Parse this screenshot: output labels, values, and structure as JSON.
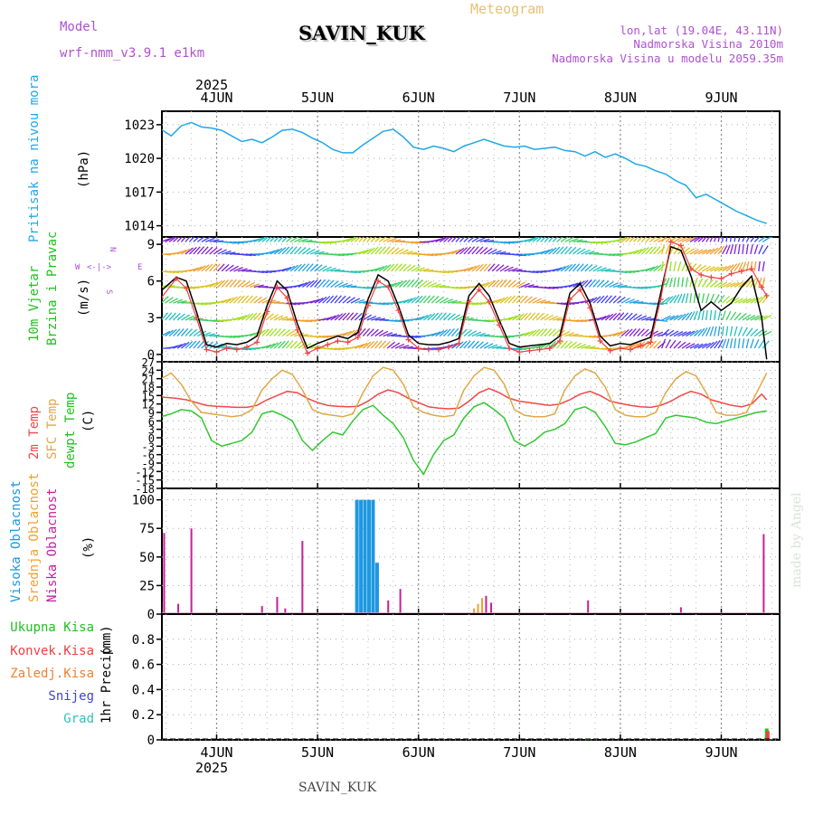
{
  "header": {
    "model_label": "Model",
    "model_name": "wrf-nmm_v3.9.1 e1km",
    "station": "SAVIN_KUK",
    "meteogram": "Meteogram",
    "lonlat": "lon,lat (19.04E, 43.11N)",
    "altitude": "Nadmorska Visina 2010m",
    "model_altitude": "Nadmorska Visina u modelu 2059.35m"
  },
  "footer": {
    "station": "SAVIN_KUK",
    "credit": "made by Angel"
  },
  "colors": {
    "pressure": "#1ea8e8",
    "temp2m": "#f04848",
    "sfc": "#e0a848",
    "dew": "#30c830",
    "cloud_high": "#1e98e0",
    "cloud_mid": "#f0a030",
    "cloud_low": "#c81e9a",
    "precip_total": "#20c020",
    "precip_conv": "#f04040",
    "precip_frz": "#f08030",
    "snow": "#4040e0",
    "hail": "#30c0c0",
    "wind_speed": "#000000",
    "gust": "#f04040"
  },
  "chart_data": [
    {
      "type": "line",
      "panel": "pressure",
      "ylabel": "Pritisak na nivou mora",
      "unit": "(hPa)",
      "ylim": [
        1013,
        1024.2
      ],
      "yticks": [
        1014,
        1017,
        1020,
        1023
      ],
      "x_dates": [
        "4JUN",
        "5JUN",
        "6JUN",
        "7JUN",
        "8JUN",
        "9JUN"
      ],
      "year": "2025",
      "grid": true,
      "series": [
        {
          "color_key": "pressure",
          "x": [
            -0.55,
            -0.45,
            -0.35,
            -0.25,
            -0.15,
            -0.05,
            0.05,
            0.15,
            0.25,
            0.35,
            0.45,
            0.55,
            0.65,
            0.75,
            0.85,
            0.95,
            1.05,
            1.15,
            1.25,
            1.35,
            1.45,
            1.55,
            1.65,
            1.75,
            1.85,
            1.95,
            2.05,
            2.15,
            2.25,
            2.35,
            2.45,
            2.55,
            2.65,
            2.75,
            2.85,
            2.95,
            3.05,
            3.15,
            3.25,
            3.35,
            3.45,
            3.55,
            3.65,
            3.75,
            3.85,
            3.95,
            4.05,
            4.15,
            4.25,
            4.35,
            4.45,
            4.55,
            4.65,
            4.75,
            4.85,
            4.95,
            5.05,
            5.15,
            5.25,
            5.35,
            5.45
          ],
          "values": [
            1022.6,
            1022.0,
            1022.9,
            1023.2,
            1022.8,
            1022.7,
            1022.5,
            1022.0,
            1021.5,
            1021.7,
            1021.4,
            1021.9,
            1022.5,
            1022.6,
            1022.3,
            1021.8,
            1021.4,
            1020.8,
            1020.5,
            1020.5,
            1021.2,
            1021.8,
            1022.4,
            1022.6,
            1021.9,
            1021.0,
            1020.8,
            1021.1,
            1020.9,
            1020.6,
            1021.1,
            1021.4,
            1021.7,
            1021.4,
            1021.1,
            1021.0,
            1021.1,
            1020.8,
            1020.9,
            1021.0,
            1020.7,
            1020.6,
            1020.2,
            1020.6,
            1020.1,
            1020.4,
            1020.0,
            1019.5,
            1019.3,
            1018.9,
            1018.6,
            1018.0,
            1017.6,
            1016.5,
            1016.8,
            1016.3,
            1015.8,
            1015.3,
            1014.9,
            1014.5,
            1014.2
          ]
        }
      ]
    },
    {
      "type": "line",
      "panel": "wind",
      "ylabel": [
        "10m Vjetar",
        "Brzina i Pravac"
      ],
      "unit": "(m/s)",
      "ylim": [
        -0.6,
        9.6
      ],
      "yticks": [
        0,
        3,
        6,
        9
      ],
      "compass": {
        "n": "N",
        "s": "S",
        "w": "W",
        "e": "E"
      },
      "series": [
        {
          "name": "speed",
          "color_key": "wind_speed",
          "x": [
            -0.55,
            -0.4,
            -0.3,
            -0.2,
            -0.1,
            0.0,
            0.1,
            0.2,
            0.3,
            0.4,
            0.5,
            0.6,
            0.7,
            0.8,
            0.9,
            1.0,
            1.1,
            1.2,
            1.3,
            1.4,
            1.5,
            1.6,
            1.7,
            1.8,
            1.9,
            2.0,
            2.1,
            2.2,
            2.3,
            2.4,
            2.5,
            2.6,
            2.7,
            2.8,
            2.9,
            3.0,
            3.1,
            3.2,
            3.3,
            3.4,
            3.5,
            3.6,
            3.7,
            3.8,
            3.9,
            4.0,
            4.1,
            4.2,
            4.3,
            4.4,
            4.5,
            4.6,
            4.7,
            4.8,
            4.9,
            5.0,
            5.1,
            5.2,
            5.3,
            5.4,
            5.45
          ],
          "values": [
            5.2,
            6.3,
            6.0,
            3.5,
            0.8,
            0.6,
            0.9,
            0.8,
            1.0,
            1.5,
            4.0,
            6.0,
            5.2,
            2.5,
            0.5,
            0.9,
            1.2,
            1.5,
            1.3,
            1.8,
            4.5,
            6.5,
            6.0,
            4.0,
            1.6,
            0.9,
            0.8,
            0.8,
            1.0,
            1.3,
            4.8,
            5.8,
            4.8,
            2.8,
            0.9,
            0.6,
            0.7,
            0.8,
            0.9,
            1.5,
            5.0,
            5.8,
            4.2,
            1.5,
            0.7,
            0.9,
            0.8,
            1.1,
            1.4,
            5.0,
            8.8,
            8.5,
            6.4,
            3.6,
            4.3,
            3.6,
            4.2,
            5.5,
            6.4,
            3.0,
            -0.4
          ]
        },
        {
          "name": "gust",
          "color_key": "gust",
          "x": [
            -0.55,
            -0.4,
            -0.3,
            -0.2,
            -0.1,
            0.0,
            0.1,
            0.2,
            0.3,
            0.4,
            0.5,
            0.6,
            0.7,
            0.8,
            0.9,
            1.0,
            1.1,
            1.2,
            1.3,
            1.4,
            1.5,
            1.6,
            1.7,
            1.8,
            1.9,
            2.0,
            2.1,
            2.2,
            2.3,
            2.4,
            2.5,
            2.6,
            2.7,
            2.8,
            2.9,
            3.0,
            3.1,
            3.2,
            3.3,
            3.4,
            3.5,
            3.6,
            3.7,
            3.8,
            3.9,
            4.0,
            4.1,
            4.2,
            4.3,
            4.4,
            4.5,
            4.6,
            4.7,
            4.8,
            4.9,
            5.0,
            5.1,
            5.2,
            5.3,
            5.4,
            5.45
          ],
          "values": [
            4.6,
            6.2,
            5.4,
            3.0,
            0.4,
            0.2,
            0.5,
            0.4,
            0.6,
            1.0,
            3.5,
            5.5,
            4.6,
            2.0,
            0.1,
            0.5,
            0.8,
            1.1,
            1.0,
            1.4,
            4.0,
            6.0,
            5.5,
            3.6,
            1.2,
            0.5,
            0.4,
            0.4,
            0.6,
            0.9,
            4.3,
            5.3,
            4.3,
            2.4,
            0.5,
            0.2,
            0.3,
            0.4,
            0.5,
            1.1,
            4.5,
            5.3,
            3.8,
            1.1,
            0.3,
            0.5,
            0.4,
            0.7,
            1.0,
            4.5,
            9.2,
            8.9,
            7.0,
            6.5,
            6.3,
            6.2,
            6.6,
            6.8,
            7.0,
            5.5,
            4.8
          ]
        }
      ]
    },
    {
      "type": "line",
      "panel": "temperature",
      "ylabel": [
        "2m Temp",
        "SFC Temp",
        "dewpt Temp"
      ],
      "unit": "(C)",
      "ylim": [
        -18,
        27
      ],
      "yticks": [
        -18,
        -15,
        -12,
        -9,
        -6,
        -3,
        0,
        3,
        6,
        9,
        12,
        15,
        18,
        21,
        24,
        27
      ],
      "series": [
        {
          "name": "2m Temp",
          "color_key": "temp2m",
          "x": [
            -0.55,
            -0.4,
            -0.3,
            -0.2,
            -0.1,
            0.0,
            0.1,
            0.2,
            0.3,
            0.4,
            0.5,
            0.6,
            0.7,
            0.8,
            0.9,
            1.0,
            1.1,
            1.2,
            1.3,
            1.4,
            1.5,
            1.6,
            1.7,
            1.8,
            1.9,
            2.0,
            2.1,
            2.2,
            2.3,
            2.4,
            2.5,
            2.6,
            2.7,
            2.8,
            2.9,
            3.0,
            3.1,
            3.2,
            3.3,
            3.4,
            3.5,
            3.6,
            3.7,
            3.8,
            3.9,
            4.0,
            4.1,
            4.2,
            4.3,
            4.4,
            4.5,
            4.6,
            4.7,
            4.8,
            4.9,
            5.0,
            5.1,
            5.2,
            5.3,
            5.4,
            5.45
          ],
          "values": [
            14.5,
            14.0,
            13.5,
            12.5,
            11.5,
            11.2,
            11.0,
            10.8,
            10.8,
            11.5,
            13.5,
            15.0,
            16.5,
            16.0,
            14.0,
            12.5,
            11.5,
            11.2,
            11.0,
            11.2,
            13.0,
            15.5,
            17.0,
            16.0,
            14.0,
            12.5,
            11.0,
            10.5,
            10.3,
            10.5,
            13.0,
            16.0,
            17.5,
            16.0,
            14.0,
            13.0,
            12.5,
            12.0,
            11.5,
            12.0,
            13.5,
            15.5,
            16.5,
            15.0,
            13.0,
            12.2,
            11.5,
            11.0,
            10.8,
            11.5,
            13.0,
            15.0,
            16.5,
            15.5,
            13.5,
            12.5,
            11.5,
            11.0,
            12.0,
            15.5,
            13.5
          ]
        },
        {
          "name": "SFC Temp",
          "color_key": "sfc",
          "x": [
            -0.55,
            -0.45,
            -0.35,
            -0.25,
            -0.15,
            -0.05,
            0.05,
            0.15,
            0.25,
            0.35,
            0.45,
            0.55,
            0.65,
            0.75,
            0.85,
            0.95,
            1.05,
            1.15,
            1.25,
            1.35,
            1.45,
            1.55,
            1.65,
            1.75,
            1.85,
            1.95,
            2.05,
            2.15,
            2.25,
            2.35,
            2.45,
            2.55,
            2.65,
            2.75,
            2.85,
            2.95,
            3.05,
            3.15,
            3.25,
            3.35,
            3.45,
            3.55,
            3.65,
            3.75,
            3.85,
            3.95,
            4.05,
            4.15,
            4.25,
            4.35,
            4.45,
            4.55,
            4.65,
            4.75,
            4.85,
            4.95,
            5.05,
            5.15,
            5.25,
            5.35,
            5.45
          ],
          "values": [
            21,
            23,
            19,
            13,
            9,
            8.5,
            8,
            7.5,
            8,
            10,
            17,
            21,
            24,
            22.5,
            17,
            10,
            8.5,
            8,
            7.5,
            8.5,
            16,
            22,
            25,
            24,
            19,
            11,
            9,
            8,
            7.5,
            8,
            17,
            22,
            25,
            24,
            19,
            10,
            8,
            7.5,
            7.5,
            8.5,
            17,
            22,
            24.5,
            23,
            18,
            10,
            8,
            7.5,
            7.5,
            9,
            16,
            21,
            23.5,
            22,
            16,
            9,
            8,
            8,
            9,
            16,
            23
          ]
        },
        {
          "name": "dewpt Temp",
          "color_key": "dew",
          "x": [
            -0.55,
            -0.45,
            -0.35,
            -0.25,
            -0.15,
            -0.05,
            0.05,
            0.15,
            0.25,
            0.35,
            0.45,
            0.55,
            0.65,
            0.75,
            0.85,
            0.95,
            1.05,
            1.15,
            1.25,
            1.35,
            1.45,
            1.55,
            1.65,
            1.75,
            1.85,
            1.95,
            2.05,
            2.15,
            2.25,
            2.35,
            2.45,
            2.55,
            2.65,
            2.75,
            2.85,
            2.95,
            3.05,
            3.15,
            3.25,
            3.35,
            3.45,
            3.55,
            3.65,
            3.75,
            3.85,
            3.95,
            4.05,
            4.15,
            4.25,
            4.35,
            4.45,
            4.55,
            4.65,
            4.75,
            4.85,
            4.95,
            5.05,
            5.15,
            5.25,
            5.35,
            5.45
          ],
          "values": [
            7.5,
            8.5,
            10,
            9.5,
            7,
            -1,
            -3,
            -2,
            -1,
            2,
            8.5,
            9.5,
            8,
            6,
            -1,
            -4.5,
            -1,
            2,
            1,
            6,
            10,
            11.5,
            8,
            5,
            0,
            -8,
            -13,
            -6,
            -1,
            1,
            7,
            11,
            12.5,
            10,
            7,
            -1,
            -3,
            -1,
            2,
            3,
            5,
            10,
            11,
            9,
            4,
            -2,
            -2.5,
            -1.5,
            0,
            1.5,
            7,
            8,
            7.5,
            7,
            5.5,
            5,
            6,
            7,
            8,
            9,
            9.5
          ]
        }
      ]
    },
    {
      "type": "bar",
      "panel": "cloud",
      "ylabel": [
        "Visoka Oblacnost",
        "Srednja Oblacnost",
        "Niska Oblacnost"
      ],
      "unit": "(%)",
      "ylim": [
        0,
        110
      ],
      "yticks": [
        0,
        25,
        50,
        75,
        100
      ],
      "series": [
        {
          "name": "Visoka Oblacnost",
          "color_key": "cloud_high",
          "x": [
            1.39,
            1.43,
            1.47,
            1.51,
            1.55,
            1.59
          ],
          "values": [
            100,
            100,
            100,
            100,
            100,
            45
          ]
        },
        {
          "name": "Srednja Oblacnost",
          "color_key": "cloud_mid",
          "x": [
            -0.55,
            2.55,
            2.59,
            2.63
          ],
          "values": [
            10,
            5,
            9,
            14
          ]
        },
        {
          "name": "Niska Oblacnost",
          "color_key": "cloud_low",
          "x": [
            -0.52,
            -0.38,
            -0.25,
            0.45,
            0.6,
            0.68,
            0.85,
            1.7,
            1.82,
            2.67,
            2.72,
            3.68,
            4.6,
            5.42
          ],
          "values": [
            71,
            9,
            75,
            7,
            15,
            5,
            64,
            12,
            22,
            16,
            10,
            12,
            6,
            70
          ]
        }
      ]
    },
    {
      "type": "bar",
      "panel": "precip",
      "ylabel": "1hr Precip",
      "unit": "(mm)",
      "ylim": [
        0,
        1.0
      ],
      "yticks": [
        0,
        0.2,
        0.4,
        0.6,
        0.8
      ],
      "legend": [
        "Ukupna Kisa",
        "Konvek.Kisa",
        "Zaledj.Kisa",
        "Snijeg",
        "Grad"
      ],
      "series": [
        {
          "name": "Ukupna Kisa",
          "color_key": "precip_total",
          "x": [
            3.68,
            5.45
          ],
          "values": [
            0.005,
            0.09
          ]
        },
        {
          "name": "Konvek.Kisa",
          "color_key": "precip_conv",
          "x": [
            5.46
          ],
          "values": [
            0.07
          ]
        }
      ]
    }
  ]
}
